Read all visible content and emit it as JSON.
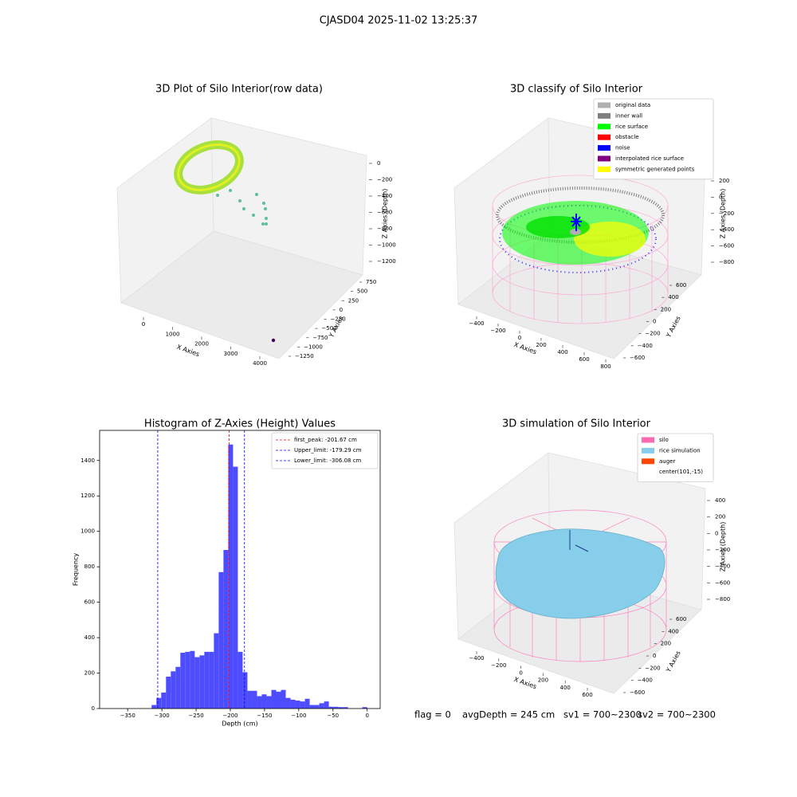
{
  "title": "CJASD04 2025-11-02 13:25:37",
  "chart_data": [
    {
      "type": "scatter3d",
      "title": "3D Plot of Silo Interior(row data)",
      "xlabel": "X Axies",
      "ylabel": "Y Axies",
      "zlabel": "Z Axies (Depth)",
      "xticks": [
        0,
        1000,
        2000,
        3000,
        4000
      ],
      "yticks": [
        750,
        500,
        250,
        0,
        {
          "value": -250,
          "label": "−250"
        },
        {
          "value": -500,
          "label": "−500"
        },
        {
          "value": -750,
          "label": "−750"
        },
        {
          "value": -1000,
          "label": "−1000"
        },
        {
          "value": -1250,
          "label": "−1250"
        }
      ],
      "zticks": [
        0,
        {
          "value": -200,
          "label": "−200"
        },
        {
          "value": -400,
          "label": "−400"
        },
        {
          "value": -600,
          "label": "−600"
        },
        {
          "value": -800,
          "label": "−800"
        },
        {
          "value": -1000,
          "label": "−1000"
        },
        {
          "value": -1200,
          "label": "−1200"
        }
      ]
    },
    {
      "type": "scatter3d",
      "title": "3D classify of Silo Interior",
      "xlabel": "X Axies",
      "ylabel": "Y Axies",
      "zlabel": "Z Axies (Depth)",
      "xticks": [
        {
          "value": -400,
          "label": "−400"
        },
        {
          "value": -200,
          "label": "−200"
        },
        0,
        200,
        400,
        600,
        800
      ],
      "yticks": [
        600,
        400,
        200,
        0,
        {
          "value": -200,
          "label": "−200"
        },
        {
          "value": -400,
          "label": "−400"
        },
        {
          "value": -600,
          "label": "−600"
        }
      ],
      "zticks": [
        200,
        0,
        {
          "value": -200,
          "label": "−200"
        },
        {
          "value": -400,
          "label": "−400"
        },
        {
          "value": -600,
          "label": "−600"
        },
        {
          "value": -800,
          "label": "−800"
        }
      ],
      "legend": [
        {
          "name": "original data",
          "color": "#b0b0b0"
        },
        {
          "name": "inner wall",
          "color": "#808080"
        },
        {
          "name": "rice surface",
          "color": "#00ff00"
        },
        {
          "name": "obstacle",
          "color": "#ff0000"
        },
        {
          "name": "noise",
          "color": "#0000ff"
        },
        {
          "name": "interpolated rice surface",
          "color": "#800080"
        },
        {
          "name": "symmetric generated points",
          "color": "#ffff00"
        }
      ]
    },
    {
      "type": "histogram",
      "title": "Histogram of Z-Axies (Height) Values",
      "xlabel": "Depth (cm)",
      "ylabel": "Frequency",
      "color": "#4d4dff",
      "bins": [
        -315,
        -308,
        -301,
        -294,
        -287,
        -280,
        -273,
        -266,
        -259,
        -252,
        -245,
        -238,
        -231,
        -224,
        -217,
        -210,
        -203,
        -196,
        -189,
        -182,
        -175,
        -168,
        -161,
        -154,
        -147,
        -140,
        -133,
        -126,
        -119,
        -112,
        -105,
        -98,
        -91,
        -84,
        -77,
        -70,
        -63,
        -56,
        -49,
        -42,
        -35,
        -28,
        -21,
        -14,
        -7,
        0
      ],
      "counts": [
        20,
        60,
        90,
        180,
        210,
        235,
        315,
        320,
        325,
        290,
        300,
        320,
        320,
        425,
        770,
        895,
        1490,
        1365,
        320,
        205,
        100,
        100,
        70,
        80,
        70,
        105,
        95,
        105,
        60,
        50,
        45,
        40,
        55,
        20,
        20,
        30,
        40,
        10,
        10,
        8,
        8,
        0,
        0,
        0,
        8
      ],
      "xlim": [
        -391,
        19
      ],
      "ylim": [
        0,
        1570
      ],
      "xticks": [
        {
          "value": -350,
          "label": "−350"
        },
        {
          "value": -300,
          "label": "−300"
        },
        {
          "value": -250,
          "label": "−250"
        },
        {
          "value": -200,
          "label": "−200"
        },
        {
          "value": -150,
          "label": "−150"
        },
        {
          "value": -100,
          "label": "−100"
        },
        {
          "value": -50,
          "label": "−50"
        },
        0
      ],
      "yticks": [
        0,
        200,
        400,
        600,
        800,
        1000,
        1200,
        1400
      ],
      "vlines": [
        {
          "value": -201.67,
          "label": "first_peak: -201.67 cm",
          "color": "#ff0000"
        },
        {
          "value": -179.29,
          "label": "Upper_limit: -179.29 cm",
          "color": "#0000ff"
        },
        {
          "value": -306.08,
          "label": "Lower_limit: -306.08 cm",
          "color": "#0000ff"
        }
      ],
      "legend_loc": "upper right"
    },
    {
      "type": "scatter3d",
      "title": "3D simulation of Silo Interior",
      "xlabel": "X Axies",
      "ylabel": "Y Axies",
      "zlabel": "Z Axies (Depth)",
      "xticks": [
        {
          "value": -400,
          "label": "−400"
        },
        {
          "value": -200,
          "label": "−200"
        },
        0,
        200,
        400,
        600
      ],
      "yticks": [
        600,
        400,
        200,
        0,
        {
          "value": -200,
          "label": "−200"
        },
        {
          "value": -400,
          "label": "−400"
        },
        {
          "value": -600,
          "label": "−600"
        }
      ],
      "zticks": [
        400,
        200,
        0,
        {
          "value": -200,
          "label": "−200"
        },
        {
          "value": -400,
          "label": "−400"
        },
        {
          "value": -600,
          "label": "−600"
        },
        {
          "value": -800,
          "label": "−800"
        }
      ],
      "legend": [
        {
          "name": "silo",
          "color": "#ff69b4"
        },
        {
          "name": "rice simulation",
          "color": "#87ceeb"
        },
        {
          "name": "auger",
          "color": "#ff4500"
        },
        {
          "name": "center(101,-15)"
        }
      ]
    }
  ],
  "status": [
    "flag = 0",
    "avgDepth = 245 cm",
    "sv1 = 700~2300",
    "sv2 = 700~2300"
  ]
}
